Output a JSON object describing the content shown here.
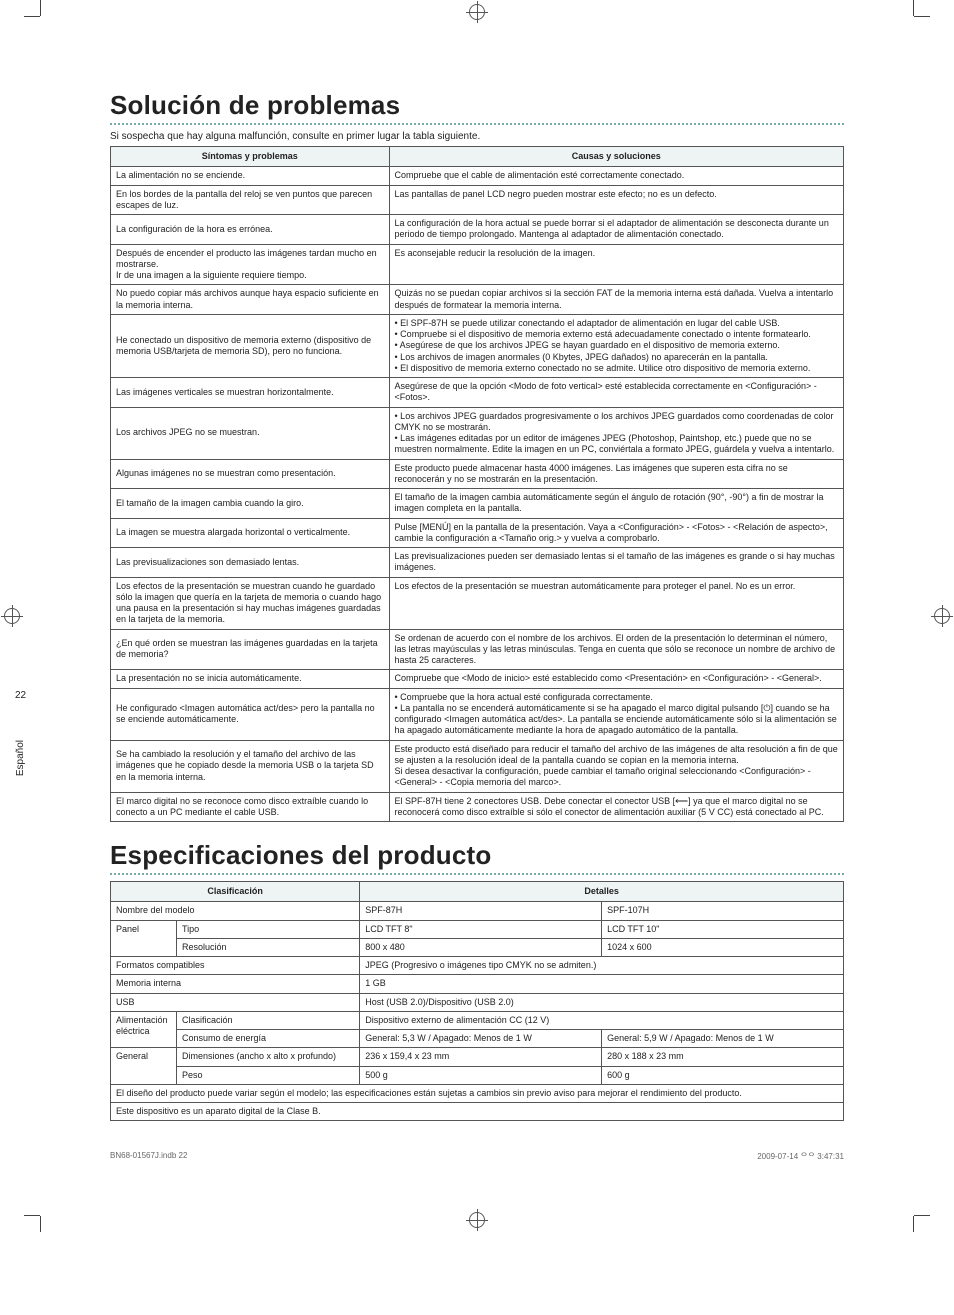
{
  "side": {
    "page_number": "22",
    "language": "Español"
  },
  "troubleshoot": {
    "heading": "Solución de problemas",
    "intro": "Si sospecha que hay alguna malfunción, consulte en primer lugar la tabla siguiente.",
    "th_left": "Síntomas y problemas",
    "th_right": "Causas y soluciones",
    "rows": [
      {
        "s": "La alimentación no se enciende.",
        "c": "Compruebe que el cable de alimentación esté correctamente conectado."
      },
      {
        "s": "En los bordes de la pantalla del reloj se ven puntos que parecen escapes de luz.",
        "c": "Las pantallas de panel LCD negro pueden mostrar este efecto; no es un defecto."
      },
      {
        "s": "La configuración de la hora es errónea.",
        "c": "La configuración de la hora actual se puede borrar si el adaptador de alimentación se desconecta durante un periodo de tiempo prolongado. Mantenga al adaptador de alimentación conectado."
      },
      {
        "s": "Después de encender el producto las imágenes tardan mucho en mostrarse.\nIr de una imagen a la siguiente requiere tiempo.",
        "c": "Es aconsejable reducir la resolución de la imagen."
      },
      {
        "s": "No puedo copiar más archivos aunque haya espacio suficiente en la memoria interna.",
        "c": "Quizás no se puedan copiar archivos si la sección FAT de la memoria interna está dañada. Vuelva a intentarlo después de formatear la memoria interna."
      },
      {
        "s": "He conectado un dispositivo de memoria externo (dispositivo de memoria USB/tarjeta de memoria SD), pero no funciona.",
        "c": "• El SPF-87H se puede utilizar conectando el adaptador de alimentación en lugar del cable USB.\n• Compruebe si el dispositivo de memoria externo está adecuadamente conectado o intente formatearlo.\n• Asegúrese de que los archivos JPEG se hayan guardado en el dispositivo de memoria externo.\n• Los archivos de imagen anormales (0 Kbytes, JPEG dañados) no aparecerán en la pantalla.\n• El dispositivo de memoria externo conectado no se admite. Utilice otro dispositivo de memoria externo."
      },
      {
        "s": "Las imágenes verticales se muestran horizontalmente.",
        "c": "Asegúrese de que la opción <Modo de foto vertical> esté establecida correctamente en <Configuración> - <Fotos>."
      },
      {
        "s": "Los archivos JPEG no se muestran.",
        "c": "• Los archivos JPEG guardados progresivamente o los archivos JPEG guardados como coordenadas de color CMYK no se mostrarán.\n• Las imágenes editadas por un editor de imágenes JPEG (Photoshop, Paintshop, etc.) puede que no se muestren normalmente. Edite la imagen en un PC, conviértala a formato JPEG, guárdela y vuelva a intentarlo."
      },
      {
        "s": "Algunas imágenes no se muestran como presentación.",
        "c": "Este producto puede almacenar hasta 4000 imágenes. Las imágenes que superen esta cifra no se reconocerán y no se mostrarán en la presentación."
      },
      {
        "s": "El tamaño de la imagen cambia cuando la giro.",
        "c": "El tamaño de la imagen cambia automáticamente según el ángulo de rotación (90°, -90°) a fin de mostrar la imagen completa en la pantalla."
      },
      {
        "s": "La imagen se muestra alargada horizontal o verticalmente.",
        "c": "Pulse [MENÚ] en la pantalla de la presentación. Vaya a <Configuración> - <Fotos> - <Relación de aspecto>, cambie la configuración a <Tamaño orig.> y vuelva a comprobarlo."
      },
      {
        "s": "Las previsualizaciones son demasiado lentas.",
        "c": "Las previsualizaciones pueden ser demasiado lentas si el tamaño de las imágenes es grande o si hay muchas imágenes."
      },
      {
        "s": "Los efectos de la presentación se muestran cuando he guardado sólo la imagen que quería en la tarjeta de memoria o cuando hago una pausa en la presentación si hay muchas imágenes guardadas en la tarjeta de la memoria.",
        "c": "Los efectos de la presentación se muestran automáticamente para proteger el panel. No es un error."
      },
      {
        "s": "¿En qué orden se muestran las imágenes guardadas en la tarjeta de memoria?",
        "c": "Se ordenan de acuerdo con el nombre de los archivos. El orden de la presentación lo determinan el número, las letras mayúsculas y las letras minúsculas. Tenga en cuenta que sólo se reconoce un nombre de archivo de hasta 25 caracteres."
      },
      {
        "s": "La presentación no se inicia automáticamente.",
        "c": "Compruebe que <Modo de inicio> esté establecido como <Presentación> en <Configuración> - <General>."
      },
      {
        "s": "He configurado <Imagen automática act/des> pero la pantalla no se enciende automáticamente.",
        "c": "• Compruebe que la hora actual esté configurada correctamente.\n• La pantalla no se encenderá automáticamente si se ha apagado el marco digital pulsando [⏻] cuando se ha configurado <Imagen automática act/des>. La pantalla se enciende automáticamente sólo si la alimentación se ha apagado automáticamente mediante la hora de apagado automático de la pantalla."
      },
      {
        "s": "Se ha cambiado la resolución y el tamaño del archivo de las imágenes que he copiado desde la memoria USB o la tarjeta SD en la memoria interna.",
        "c": "Este producto está diseñado para reducir el tamaño del archivo de las imágenes de alta resolución a fin de que se ajusten a la resolución ideal de la pantalla cuando se copian en la memoria interna.\nSi desea desactivar la configuración, puede cambiar el tamaño original seleccionando <Configuración> - <General> - <Copia memoria del marco>."
      },
      {
        "s": "El marco digital no se reconoce como disco extraíble cuando lo conecto a un PC mediante el cable USB.",
        "c": "El SPF-87H tiene 2 conectores USB. Debe conectar el conector USB [⟵] ya que el marco digital no se reconocerá como disco extraíble si sólo el conector de alimentación auxiliar (5 V CC) está conectado al PC."
      }
    ]
  },
  "specs": {
    "heading": "Especificaciones del producto",
    "th_class": "Clasificación",
    "th_details": "Detalles",
    "labels": {
      "model": "Nombre del modelo",
      "panel": "Panel",
      "panel_type": "Tipo",
      "panel_res": "Resolución",
      "formats": "Formatos compatibles",
      "memory": "Memoria interna",
      "usb": "USB",
      "power": "Alimentación eléctrica",
      "power_class": "Clasificación",
      "power_cons": "Consumo de energía",
      "general": "General",
      "general_dims": "Dimensiones (ancho x alto x profundo)",
      "general_weight": "Peso"
    },
    "values": {
      "model_a": "SPF-87H",
      "model_b": "SPF-107H",
      "panel_type_a": "LCD TFT 8\"",
      "panel_type_b": "LCD TFT 10\"",
      "panel_res_a": "800 x 480",
      "panel_res_b": "1024 x 600",
      "formats": "JPEG (Progresivo o imágenes tipo CMYK no se admiten.)",
      "memory": "1 GB",
      "usb": "Host (USB 2.0)/Dispositivo (USB 2.0)",
      "power_class": "Dispositivo externo de alimentación CC (12 V)",
      "power_cons_a": "General: 5,3 W / Apagado: Menos de 1 W",
      "power_cons_b": "General: 5,9 W / Apagado: Menos de 1 W",
      "dims_a": "236 x 159,4 x 23 mm",
      "dims_b": "280 x 188 x 23 mm",
      "weight_a": "500 g",
      "weight_b": "600 g"
    },
    "footnote1": "El diseño del producto puede variar según el modelo; las especificaciones están sujetas a cambios sin previo aviso para mejorar el rendimiento del producto.",
    "footnote2": "Este dispositivo es un aparato digital de la Clase B."
  },
  "footer": {
    "left": "BN68-01567J.indb   22",
    "right": "2009-07-14   ᄋᄋ 3:47:31"
  },
  "colors": {
    "dotted_rule": "#7aa",
    "header_bg": "#eef3f3",
    "border": "#555",
    "text": "#222"
  }
}
